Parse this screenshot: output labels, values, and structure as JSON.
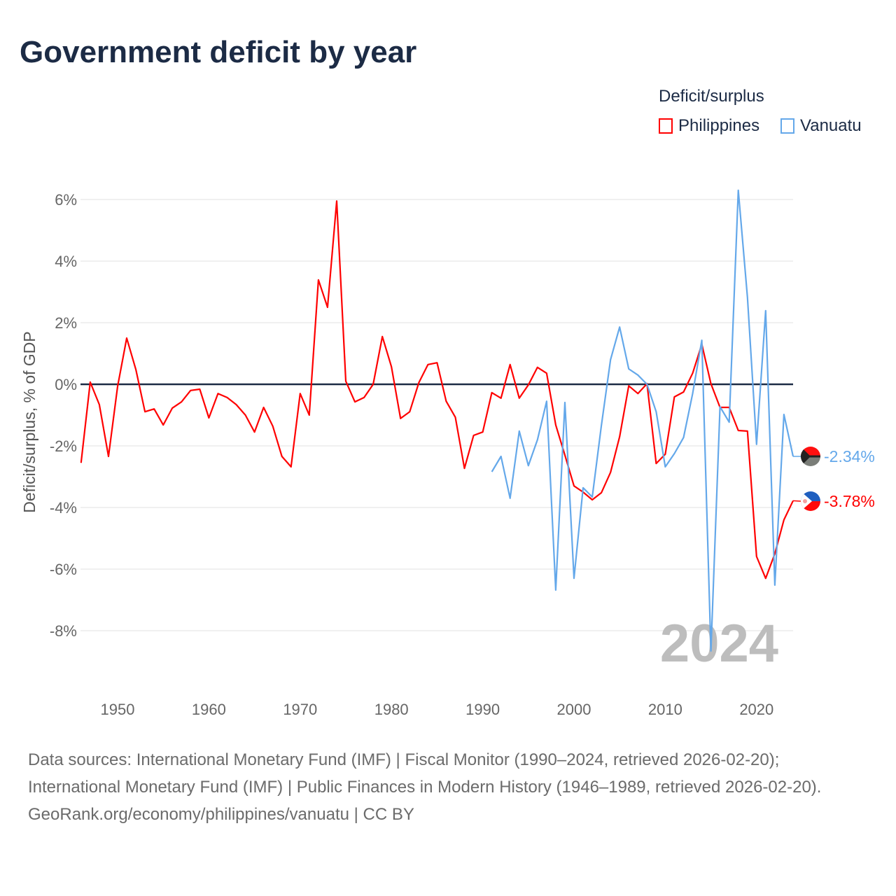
{
  "title": "Government deficit by year",
  "legend": {
    "title": "Deficit/surplus",
    "items": [
      {
        "name": "Philippines",
        "color": "#ff0000"
      },
      {
        "name": "Vanuatu",
        "color": "#64a8ea"
      }
    ]
  },
  "footer": {
    "sources": "Data sources: International Monetary Fund (IMF) | Fiscal Monitor (1990–2024, retrieved 2026-02-20); International Monetary Fund (IMF) | Public Finances in Modern History (1946–1989, retrieved 2026-02-20).",
    "credit": "GeoRank.org/economy/philippines/vanuatu | CC BY"
  },
  "chart_data": {
    "type": "line",
    "title": "Government deficit by year",
    "xlabel": "",
    "ylabel": "Deficit/surplus, % of GDP",
    "xlim": [
      1946,
      2024
    ],
    "ylim": [
      -9.8,
      6.3
    ],
    "x_ticks": [
      1950,
      1960,
      1970,
      1980,
      1990,
      2000,
      2010,
      2020
    ],
    "y_ticks": [
      6,
      4,
      2,
      0,
      -2,
      -4,
      -6,
      -8
    ],
    "y_tick_labels": [
      "6%",
      "4%",
      "2%",
      "0%",
      "-2%",
      "-4%",
      "-6%",
      "-8%"
    ],
    "year_watermark": "2024",
    "legend_position": "top-right",
    "series": [
      {
        "name": "Philippines",
        "color": "#ff0000",
        "start_year": 1946,
        "end_label": "-3.78%",
        "values": [
          -2.55,
          0.07,
          -0.66,
          -2.34,
          -0.07,
          1.5,
          0.48,
          -0.89,
          -0.8,
          -1.32,
          -0.77,
          -0.57,
          -0.2,
          -0.16,
          -1.09,
          -0.3,
          -0.43,
          -0.66,
          -1.0,
          -1.55,
          -0.75,
          -1.36,
          -2.34,
          -2.68,
          -0.3,
          -1.0,
          3.39,
          2.5,
          5.95,
          0.1,
          -0.57,
          -0.43,
          0.0,
          1.55,
          0.57,
          -1.11,
          -0.89,
          0.05,
          0.64,
          0.7,
          -0.55,
          -1.07,
          -2.73,
          -1.66,
          -1.55,
          -0.27,
          -0.45,
          0.64,
          -0.45,
          -0.02,
          0.55,
          0.36,
          -1.32,
          -2.3,
          -3.3,
          -3.5,
          -3.75,
          -3.52,
          -2.86,
          -1.7,
          -0.05,
          -0.3,
          0.02,
          -2.57,
          -2.27,
          -0.41,
          -0.25,
          0.36,
          1.3,
          0.02,
          -0.75,
          -0.75,
          -1.5,
          -1.52,
          -5.59,
          -6.3,
          -5.5,
          -4.4,
          -3.78
        ]
      },
      {
        "name": "Vanuatu",
        "color": "#64a8ea",
        "start_year": 1991,
        "end_label": "-2.34%",
        "values": [
          -2.84,
          -2.34,
          -3.7,
          -1.52,
          -2.64,
          -1.8,
          -0.55,
          -6.68,
          -0.59,
          -6.3,
          -3.36,
          -3.66,
          -1.34,
          0.8,
          1.86,
          0.5,
          0.3,
          0.0,
          -0.89,
          -2.68,
          -2.25,
          -1.73,
          -0.3,
          1.43,
          -8.66,
          -0.73,
          -1.23,
          6.3,
          2.82,
          -1.95,
          2.39,
          -6.52,
          -0.98,
          -2.34
        ]
      }
    ]
  }
}
